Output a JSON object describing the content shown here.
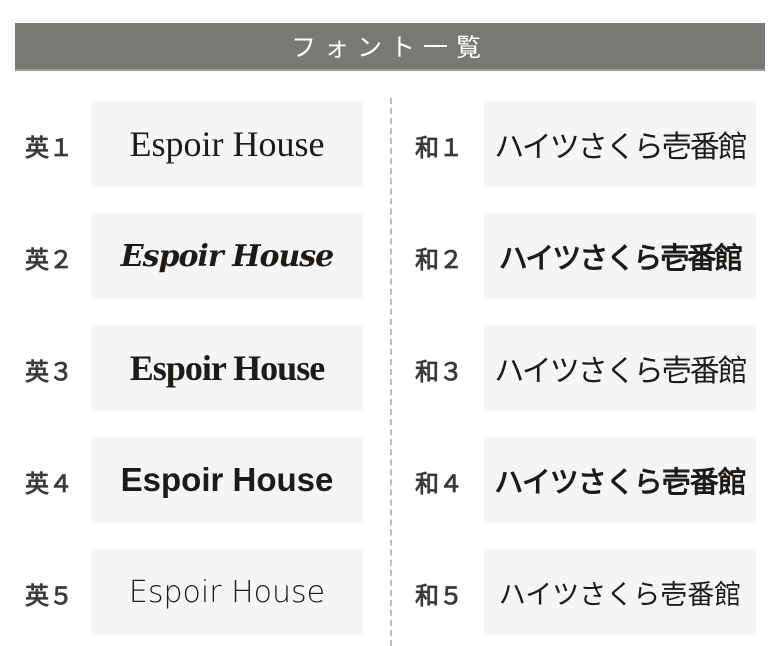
{
  "header": {
    "title": "フォント一覧"
  },
  "english": [
    {
      "label": "英１",
      "sample": "Espoir House"
    },
    {
      "label": "英２",
      "sample": "Espoir House"
    },
    {
      "label": "英３",
      "sample": "Espoir House"
    },
    {
      "label": "英４",
      "sample": "Espoir House"
    },
    {
      "label": "英５",
      "sample": "Espoir House"
    }
  ],
  "japanese": [
    {
      "label": "和１",
      "sample": "ハイツさくら壱番館"
    },
    {
      "label": "和２",
      "sample": "ハイツさくら壱番館"
    },
    {
      "label": "和３",
      "sample": "ハイツさくら壱番館"
    },
    {
      "label": "和４",
      "sample": "ハイツさくら壱番館"
    },
    {
      "label": "和５",
      "sample": "ハイツさくら壱番館"
    }
  ],
  "colors": {
    "header_bg": "#777a74",
    "box_bg": "#f4f5f4",
    "text": "#1e1a18"
  }
}
